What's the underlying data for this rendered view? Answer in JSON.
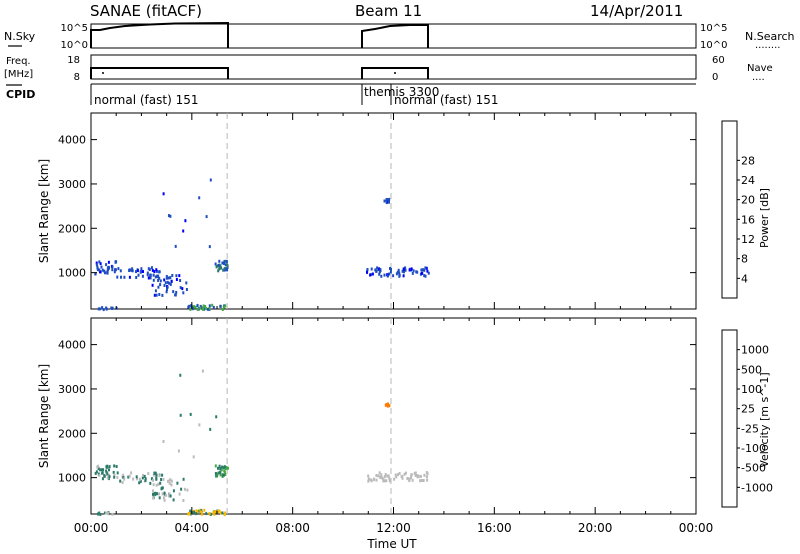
{
  "header": {
    "title": "SANAE (fitACF)",
    "beam": "Beam 11",
    "date": "14/Apr/2011"
  },
  "top_panels": {
    "nsky_label": "N.Sky",
    "nsky_ticks": [
      "10^5",
      "10^0"
    ],
    "nsearch_label": "N.Search",
    "nsearch_ticks": [
      "10^5",
      "10^0"
    ],
    "freq_label_1": "Freq.",
    "freq_label_2": "[MHz]",
    "freq_ticks": [
      "18",
      "8"
    ],
    "nave_label": "Nave",
    "nave_ticks": [
      "60",
      "0"
    ],
    "cpid_label": "CPID",
    "cpid_segments": [
      {
        "label": "normal (fast) 151",
        "start_hour": 0,
        "end_hour": 10.8
      },
      {
        "label": "themis 3300",
        "start_hour": 10.8,
        "end_hour": 11.9
      },
      {
        "label": "normal (fast) 151",
        "start_hour": 11.9,
        "end_hour": 24
      }
    ]
  },
  "chart_data": [
    {
      "type": "heatmap",
      "name": "power",
      "ylabel": "Slant Range [km]",
      "xlabel": "Time UT",
      "x_ticks": [
        "00:00",
        "04:00",
        "08:00",
        "12:00",
        "16:00",
        "20:00",
        "00:00"
      ],
      "y_ticks": [
        1000,
        2000,
        3000,
        4000
      ],
      "xlim_hours": [
        0,
        24
      ],
      "ylim_km": [
        180,
        4600
      ],
      "vertical_dashed_hours": [
        5.4,
        11.9
      ],
      "colorbar": {
        "label": "Power [dB]",
        "ticks": [
          "4",
          "8",
          "12",
          "16",
          "20",
          "24",
          "28"
        ],
        "colors": [
          "#0000ff",
          "#1f4ec0",
          "#2a7a6a",
          "#45a845",
          "#bfe020",
          "#f6b800",
          "#ff7a00",
          "#ff3a00",
          "#ff0000"
        ]
      }
    },
    {
      "type": "heatmap",
      "name": "velocity",
      "ylabel": "Slant Range [km]",
      "xlabel": "Time UT",
      "x_ticks": [
        "00:00",
        "04:00",
        "08:00",
        "12:00",
        "16:00",
        "20:00",
        "00:00"
      ],
      "y_ticks": [
        1000,
        2000,
        3000,
        4000
      ],
      "xlim_hours": [
        0,
        24
      ],
      "ylim_km": [
        180,
        4600
      ],
      "vertical_dashed_hours": [
        5.4,
        11.9
      ],
      "colorbar": {
        "label": "Velocity [m s^-1]",
        "ticks": [
          "1000",
          "500",
          "100",
          "25",
          "-25",
          "-100",
          "-500",
          "-1000"
        ],
        "colors": [
          "#0000ff",
          "#1f4ec0",
          "#2a7a6a",
          "#45a845",
          "#bbbbbb",
          "#f6b800",
          "#ff7a00",
          "#ff3a00",
          "#ff0000"
        ]
      }
    }
  ],
  "ui": {
    "nsearch_dots": "........",
    "nave_dots": "...."
  }
}
